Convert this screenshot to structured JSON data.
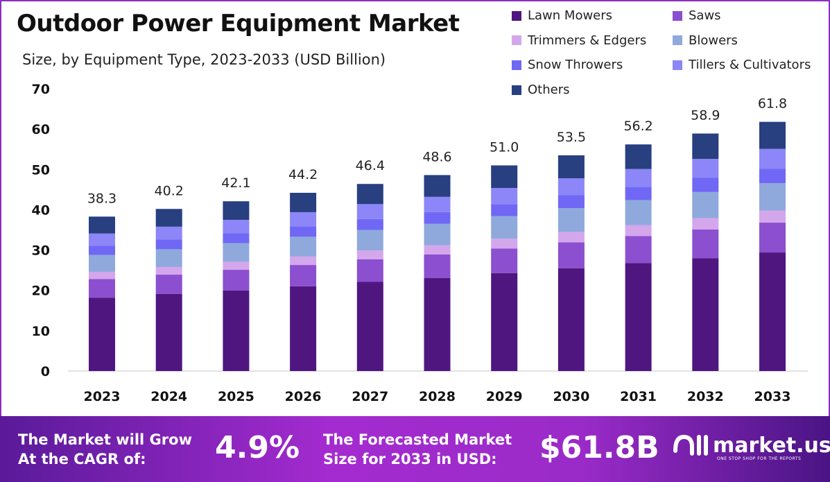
{
  "header": {
    "title": "Outdoor Power Equipment Market",
    "subtitle": "Size, by Equipment Type, 2023-2033 (USD Billion)"
  },
  "chart_data": {
    "type": "bar",
    "stacked": true,
    "title": "Outdoor Power Equipment Market",
    "subtitle": "Size, by Equipment Type, 2023-2033 (USD Billion)",
    "categories": [
      "2023",
      "2024",
      "2025",
      "2026",
      "2027",
      "2028",
      "2029",
      "2030",
      "2031",
      "2032",
      "2033"
    ],
    "ylim": [
      0,
      70
    ],
    "yticks": [
      "0",
      "10",
      "20",
      "30",
      "40",
      "50",
      "60",
      "70"
    ],
    "grid": false,
    "legend_position": "top-right",
    "totals": [
      "38.3",
      "40.2",
      "42.1",
      "44.2",
      "46.4",
      "48.6",
      "51.0",
      "53.5",
      "56.2",
      "58.9",
      "61.8"
    ],
    "series": [
      {
        "name": "Lawn Mowers",
        "color": "#4f1680",
        "values": [
          18.2,
          19.1,
          20.0,
          21.0,
          22.1,
          23.1,
          24.3,
          25.5,
          26.8,
          28.0,
          29.4
        ]
      },
      {
        "name": "Saws",
        "color": "#8b4fcf",
        "values": [
          4.6,
          4.8,
          5.1,
          5.3,
          5.6,
          5.8,
          6.1,
          6.4,
          6.7,
          7.1,
          7.4
        ]
      },
      {
        "name": "Trimmers & Edgers",
        "color": "#d4a6ec",
        "values": [
          1.8,
          1.9,
          2.0,
          2.1,
          2.2,
          2.3,
          2.4,
          2.6,
          2.7,
          2.8,
          3.0
        ]
      },
      {
        "name": "Blowers",
        "color": "#8fa9dc",
        "values": [
          4.2,
          4.4,
          4.6,
          4.9,
          5.1,
          5.3,
          5.6,
          5.9,
          6.2,
          6.5,
          6.8
        ]
      },
      {
        "name": "Snow Throwers",
        "color": "#7068f5",
        "values": [
          2.3,
          2.4,
          2.5,
          2.6,
          2.7,
          2.9,
          3.0,
          3.2,
          3.3,
          3.5,
          3.6
        ]
      },
      {
        "name": "Tillers & Cultivators",
        "color": "#8c86f8",
        "values": [
          3.0,
          3.2,
          3.3,
          3.5,
          3.7,
          3.8,
          4.0,
          4.2,
          4.4,
          4.7,
          4.9
        ]
      },
      {
        "name": "Others",
        "color": "#283f80",
        "values": [
          4.2,
          4.4,
          4.6,
          4.8,
          5.0,
          5.4,
          5.6,
          5.7,
          6.1,
          6.3,
          6.7
        ]
      }
    ]
  },
  "footer": {
    "cagr_label_1": "The Market will Grow",
    "cagr_label_2": "At the CAGR of:",
    "cagr_value": "4.9%",
    "size_label_1": "The Forecasted Market",
    "size_label_2": "Size for 2033 in USD:",
    "size_value": "$61.8B",
    "brand": "market.us",
    "tagline": "ONE STOP SHOP FOR THE REPORTS"
  }
}
